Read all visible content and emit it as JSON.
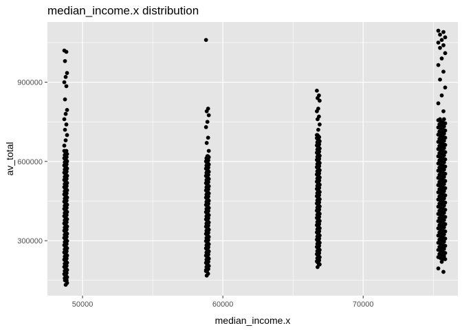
{
  "chart_data": {
    "type": "scatter",
    "title": "median_income.x  distribution",
    "xlabel": "median_income.x",
    "ylabel": "av_total",
    "xlim": [
      47500,
      76750
    ],
    "ylim": [
      92000,
      1128000
    ],
    "xticks": [
      {
        "value": 50000,
        "label": "50000"
      },
      {
        "value": 60000,
        "label": "60000"
      },
      {
        "value": 70000,
        "label": "70000"
      }
    ],
    "yticks": [
      {
        "value": 300000,
        "label": "300000"
      },
      {
        "value": 600000,
        "label": "600000"
      },
      {
        "value": 900000,
        "label": "900000"
      }
    ],
    "grid": true,
    "legend": "none",
    "colors": {
      "panel": "#e5e5e5",
      "grid_major": "#ffffff",
      "point": "#000000"
    },
    "series": [
      {
        "x": 48800,
        "min": 133000,
        "max": 1020000,
        "outliers": [
          1020000,
          1015000,
          980000,
          935000,
          920000,
          900000,
          885000,
          835000,
          795000,
          780000,
          760000,
          740000,
          720000,
          700000,
          680000,
          660000,
          640000,
          150000,
          140000,
          133000
        ]
      },
      {
        "x": 58900,
        "min": 168000,
        "max": 1060000,
        "outliers": [
          1060000,
          800000,
          790000,
          775000,
          750000,
          730000,
          690000,
          670000,
          640000,
          620000,
          185000,
          175000,
          168000
        ]
      },
      {
        "x": 66800,
        "min": 200000,
        "max": 868000,
        "outliers": [
          868000,
          850000,
          840000,
          830000,
          800000,
          790000,
          770000,
          760000,
          740000,
          720000,
          700000,
          210000,
          200000
        ]
      },
      {
        "x": 75600,
        "min": 182000,
        "max": 1095000,
        "outliers": [
          1095000,
          1090000,
          1080000,
          1070000,
          1060000,
          1050000,
          1040000,
          1030000,
          1010000,
          990000,
          965000,
          940000,
          910000,
          880000,
          850000,
          820000,
          790000,
          760000,
          230000,
          220000,
          195000,
          182000
        ]
      }
    ]
  }
}
